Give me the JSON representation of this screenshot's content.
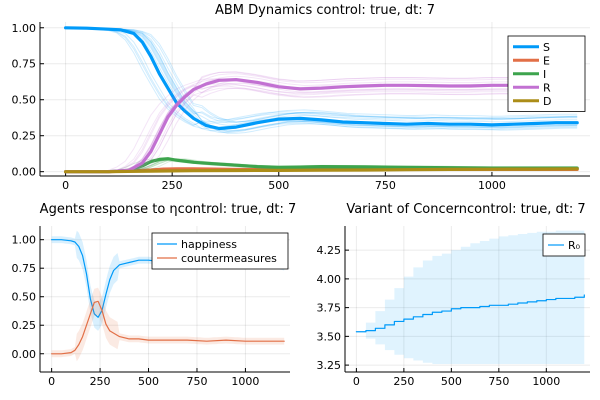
{
  "chart_data": [
    {
      "id": "abm",
      "type": "line",
      "title": "ABM Dynamics control: true, dt: 7",
      "xlim": [
        -60,
        1230
      ],
      "ylim": [
        -0.03,
        1.04
      ],
      "xticks": [
        0,
        250,
        500,
        750,
        1000
      ],
      "yticks": [
        0.0,
        0.25,
        0.5,
        0.75,
        1.0
      ],
      "ytick_labels": [
        "0.00",
        "0.25",
        "0.50",
        "0.75",
        "1.00"
      ],
      "legend_position": "top-right",
      "series": [
        {
          "name": "S",
          "color": "#009af9",
          "x": [
            0,
            50,
            100,
            130,
            160,
            180,
            200,
            220,
            240,
            260,
            280,
            300,
            330,
            360,
            400,
            450,
            500,
            550,
            600,
            650,
            700,
            750,
            800,
            850,
            900,
            950,
            1000,
            1050,
            1100,
            1150,
            1200
          ],
          "y": [
            1.0,
            0.997,
            0.99,
            0.985,
            0.96,
            0.9,
            0.8,
            0.68,
            0.58,
            0.48,
            0.42,
            0.37,
            0.32,
            0.3,
            0.31,
            0.34,
            0.365,
            0.37,
            0.36,
            0.345,
            0.34,
            0.335,
            0.33,
            0.335,
            0.33,
            0.33,
            0.325,
            0.33,
            0.335,
            0.34,
            0.34
          ]
        },
        {
          "name": "E",
          "color": "#e26f46",
          "x": [
            0,
            100,
            150,
            200,
            230,
            260,
            300,
            350,
            400,
            500,
            600,
            700,
            800,
            900,
            1000,
            1100,
            1200
          ],
          "y": [
            0.0,
            0.0,
            0.005,
            0.012,
            0.018,
            0.02,
            0.02,
            0.018,
            0.015,
            0.015,
            0.016,
            0.016,
            0.016,
            0.016,
            0.016,
            0.016,
            0.016
          ]
        },
        {
          "name": "I",
          "color": "#3da44d",
          "x": [
            0,
            100,
            150,
            180,
            200,
            220,
            240,
            260,
            300,
            350,
            400,
            450,
            500,
            550,
            600,
            700,
            800,
            900,
            1000,
            1100,
            1200
          ],
          "y": [
            0.0,
            0.0,
            0.01,
            0.04,
            0.07,
            0.085,
            0.09,
            0.08,
            0.065,
            0.055,
            0.045,
            0.035,
            0.03,
            0.032,
            0.035,
            0.033,
            0.03,
            0.028,
            0.025,
            0.025,
            0.025
          ]
        },
        {
          "name": "R",
          "color": "#c271d2",
          "x": [
            0,
            100,
            150,
            180,
            200,
            220,
            240,
            260,
            280,
            300,
            330,
            360,
            400,
            450,
            500,
            550,
            600,
            650,
            700,
            750,
            800,
            850,
            900,
            950,
            1000,
            1050,
            1100,
            1150,
            1200
          ],
          "y": [
            0.0,
            0.0,
            0.01,
            0.06,
            0.14,
            0.26,
            0.38,
            0.46,
            0.52,
            0.57,
            0.61,
            0.635,
            0.64,
            0.62,
            0.59,
            0.575,
            0.58,
            0.59,
            0.595,
            0.6,
            0.6,
            0.598,
            0.595,
            0.595,
            0.6,
            0.6,
            0.595,
            0.585,
            0.59
          ]
        },
        {
          "name": "D",
          "color": "#ac8d18",
          "x": [
            0,
            100,
            200,
            300,
            400,
            500,
            600,
            700,
            800,
            900,
            1000,
            1100,
            1200
          ],
          "y": [
            0.0,
            0.0,
            0.004,
            0.007,
            0.008,
            0.009,
            0.01,
            0.012,
            0.014,
            0.016,
            0.017,
            0.018,
            0.02
          ]
        }
      ]
    },
    {
      "id": "agents",
      "type": "line",
      "title": "Agents response to ηcontrol: true, dt: 7",
      "xlim": [
        -60,
        1230
      ],
      "ylim": [
        -0.16,
        1.12
      ],
      "xticks": [
        0,
        250,
        500,
        750,
        1000
      ],
      "yticks": [
        0.0,
        0.25,
        0.5,
        0.75,
        1.0
      ],
      "ytick_labels": [
        "0.00",
        "0.25",
        "0.50",
        "0.75",
        "1.00"
      ],
      "legend_position": "top-right",
      "series": [
        {
          "name": "happiness",
          "color": "#009af9",
          "x": [
            0,
            50,
            100,
            120,
            140,
            160,
            180,
            200,
            220,
            240,
            260,
            280,
            300,
            320,
            350,
            400,
            450,
            500,
            550,
            600,
            650,
            700,
            750,
            800,
            850,
            900,
            950,
            1000,
            1050,
            1100,
            1150,
            1200
          ],
          "y": [
            1.0,
            1.0,
            0.99,
            0.98,
            0.94,
            0.86,
            0.7,
            0.48,
            0.35,
            0.32,
            0.38,
            0.52,
            0.65,
            0.73,
            0.78,
            0.8,
            0.82,
            0.82,
            0.81,
            0.82,
            0.8,
            0.79,
            0.8,
            0.79,
            0.79,
            0.8,
            0.79,
            0.79,
            0.78,
            0.78,
            0.78,
            0.76
          ]
        },
        {
          "name": "countermeasures",
          "color": "#e26f46",
          "x": [
            0,
            50,
            100,
            120,
            140,
            160,
            180,
            200,
            220,
            240,
            260,
            280,
            300,
            350,
            400,
            450,
            500,
            600,
            700,
            800,
            900,
            1000,
            1100,
            1200
          ],
          "y": [
            0.0,
            0.0,
            0.01,
            0.03,
            0.08,
            0.15,
            0.25,
            0.35,
            0.45,
            0.46,
            0.38,
            0.26,
            0.2,
            0.15,
            0.13,
            0.13,
            0.12,
            0.12,
            0.12,
            0.11,
            0.12,
            0.11,
            0.11,
            0.11
          ]
        }
      ]
    },
    {
      "id": "variant",
      "type": "line",
      "title": "Variant of Concerncontrol: true, dt: 7",
      "xlim": [
        -60,
        1230
      ],
      "ylim": [
        3.19,
        4.46
      ],
      "xticks": [
        0,
        250,
        500,
        750,
        1000
      ],
      "yticks": [
        3.25,
        3.5,
        3.75,
        4.0,
        4.25
      ],
      "ytick_labels": [
        "3.25",
        "3.50",
        "3.75",
        "4.00",
        "4.25"
      ],
      "legend_position": "top-right",
      "series": [
        {
          "name": "R₀",
          "color": "#009af9",
          "x": [
            0,
            50,
            100,
            150,
            200,
            250,
            300,
            350,
            400,
            450,
            500,
            550,
            600,
            650,
            700,
            750,
            800,
            850,
            900,
            950,
            1000,
            1050,
            1100,
            1150,
            1200
          ],
          "y": [
            3.54,
            3.55,
            3.57,
            3.6,
            3.63,
            3.65,
            3.67,
            3.69,
            3.71,
            3.72,
            3.74,
            3.75,
            3.75,
            3.76,
            3.77,
            3.77,
            3.78,
            3.79,
            3.8,
            3.81,
            3.82,
            3.83,
            3.83,
            3.84,
            3.86
          ],
          "band_lower": [
            3.54,
            3.48,
            3.43,
            3.38,
            3.34,
            3.31,
            3.29,
            3.27,
            3.26,
            3.26,
            3.26,
            3.26,
            3.26,
            3.26,
            3.26,
            3.26,
            3.26,
            3.26,
            3.26,
            3.26,
            3.26,
            3.26,
            3.26,
            3.26,
            3.26
          ],
          "band_upper": [
            3.54,
            3.62,
            3.72,
            3.82,
            3.92,
            4.02,
            4.1,
            4.16,
            4.2,
            4.22,
            4.25,
            4.28,
            4.31,
            4.33,
            4.35,
            4.37,
            4.38,
            4.39,
            4.4,
            4.41,
            4.41,
            4.42,
            4.42,
            4.42,
            4.42
          ]
        }
      ]
    }
  ]
}
